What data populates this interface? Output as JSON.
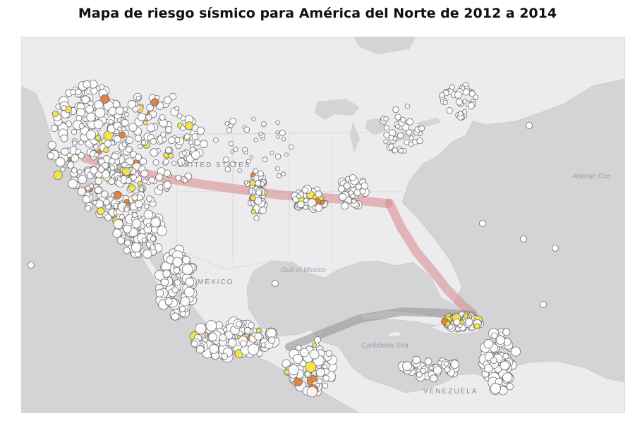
{
  "title": "Mapa de riesgo sísmico para América del Norte de 2012 a 2014",
  "map_labels": {
    "us": "UNITED STATES",
    "mexico": "MEXICO",
    "gulf": "Gulf of Mexico",
    "caribbean": "Caribbean Sea",
    "atlantic": "Atlantic Oce",
    "venezuela": "VENEZUELA"
  },
  "colors": {
    "land": "#ececee",
    "water": "#d4d4d6",
    "marker_low": "#ffffff",
    "marker_mid": "#f5e63c",
    "marker_high": "#e27a2e",
    "band_risk": "#d9898d",
    "band_dark": "#8f8f93"
  },
  "risk_bands": [
    {
      "name": "transcontinental-risk-band",
      "color": "#d9898d"
    },
    {
      "name": "atlantic-coast-risk-band",
      "color": "#d9898d"
    },
    {
      "name": "caribbean-risk-band",
      "color": "#8f8f93"
    }
  ]
}
